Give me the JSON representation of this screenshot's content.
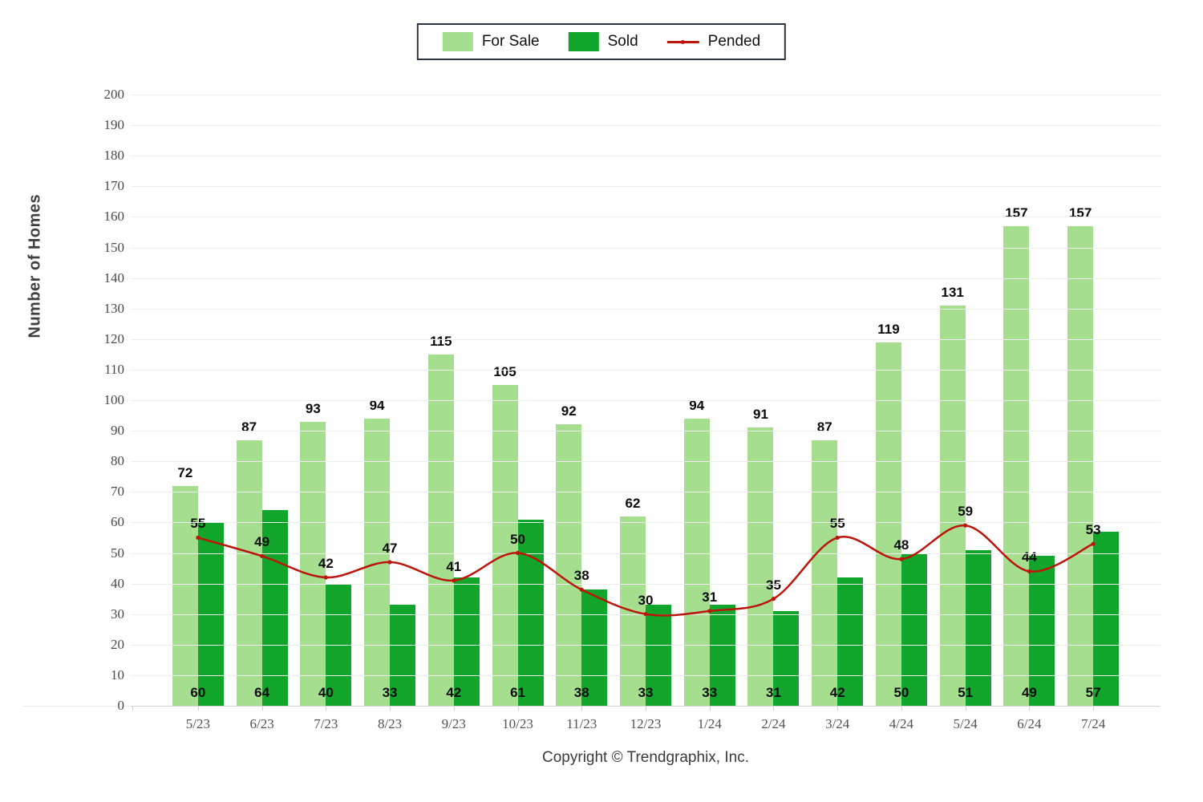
{
  "legend": {
    "items": [
      {
        "label": "For Sale",
        "marker": "swatch",
        "color": "#a5de8f"
      },
      {
        "label": "Sold",
        "marker": "swatch",
        "color": "#11a52c"
      },
      {
        "label": "Pended",
        "marker": "line",
        "color": "#bb150c"
      }
    ]
  },
  "axis": {
    "y_title": "Number of Homes"
  },
  "footer": {
    "copyright": "Copyright © Trendgraphix, Inc."
  },
  "colors": {
    "for_sale": "#a5de8f",
    "sold": "#11a52c",
    "pended": "#bb150c",
    "grid": "#ededed",
    "axis_line": "#d4d4d4"
  },
  "chart_data": {
    "type": "bar",
    "categories": [
      "5/23",
      "6/23",
      "7/23",
      "8/23",
      "9/23",
      "10/23",
      "11/23",
      "12/23",
      "1/24",
      "2/24",
      "3/24",
      "4/24",
      "5/24",
      "6/24",
      "7/24"
    ],
    "series": [
      {
        "name": "For Sale",
        "type": "bar",
        "color": "#a5de8f",
        "values": [
          72,
          87,
          93,
          94,
          115,
          105,
          92,
          62,
          94,
          91,
          87,
          119,
          131,
          157,
          157
        ]
      },
      {
        "name": "Sold",
        "type": "bar",
        "color": "#11a52c",
        "values": [
          60,
          64,
          40,
          33,
          42,
          61,
          38,
          33,
          33,
          31,
          42,
          50,
          51,
          49,
          57
        ]
      },
      {
        "name": "Pended",
        "type": "line",
        "color": "#bb150c",
        "values": [
          55,
          49,
          42,
          47,
          41,
          50,
          38,
          30,
          31,
          35,
          55,
          48,
          59,
          44,
          53
        ]
      }
    ],
    "title": "",
    "xlabel": "",
    "ylabel": "Number of Homes",
    "ylim": [
      0,
      200
    ],
    "yticks": [
      0,
      10,
      20,
      30,
      40,
      50,
      60,
      70,
      80,
      90,
      100,
      110,
      120,
      130,
      140,
      150,
      160,
      170,
      180,
      190,
      200
    ],
    "grid": "horizontal",
    "legend_position": "top-center"
  }
}
